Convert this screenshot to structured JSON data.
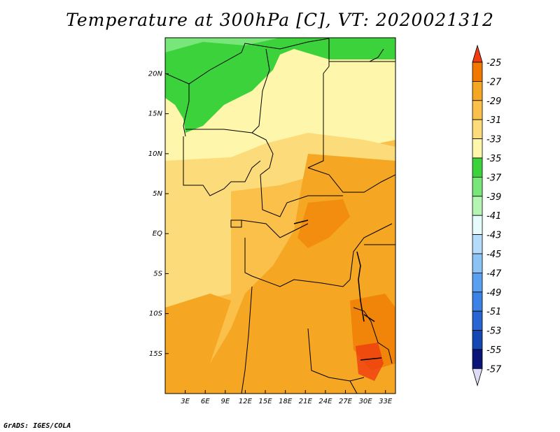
{
  "title": "Temperature at 300hPa [C], VT: 2020021312",
  "credit": "GrADS: IGES/COLA",
  "colors": {
    "c_25": "#f03c10",
    "c_27": "#f07800",
    "c_29": "#f5a622",
    "c_31": "#fac04a",
    "c_33": "#fcdb7a",
    "c_35": "#fef6aa",
    "c_37": "#3cd23c",
    "c_39": "#78e678",
    "c_41": "#b4f5b4",
    "c_43": "#e6fcfc",
    "c_45": "#b4dcfa",
    "c_47": "#8cc3f5",
    "c_49": "#5aa0f0",
    "c_51": "#3c82e6",
    "c_53": "#2864d2",
    "c_55": "#1446b4",
    "c_57": "#0a1478"
  },
  "map_extent": {
    "lon": [
      0,
      34.5
    ],
    "lat": [
      -20,
      24.5
    ]
  },
  "axes": {
    "lon_ticks": [
      "3E",
      "6E",
      "9E",
      "12E",
      "15E",
      "18E",
      "21E",
      "24E",
      "27E",
      "30E",
      "33E"
    ],
    "lat_ticks": [
      "20N",
      "15N",
      "10N",
      "5N",
      "EQ",
      "5S",
      "10S",
      "15S"
    ]
  },
  "colorbar": {
    "labels": [
      "-25",
      "-27",
      "-29",
      "-31",
      "-33",
      "-35",
      "-37",
      "-39",
      "-41",
      "-43",
      "-45",
      "-47",
      "-49",
      "-51",
      "-53",
      "-55",
      "-57"
    ]
  }
}
